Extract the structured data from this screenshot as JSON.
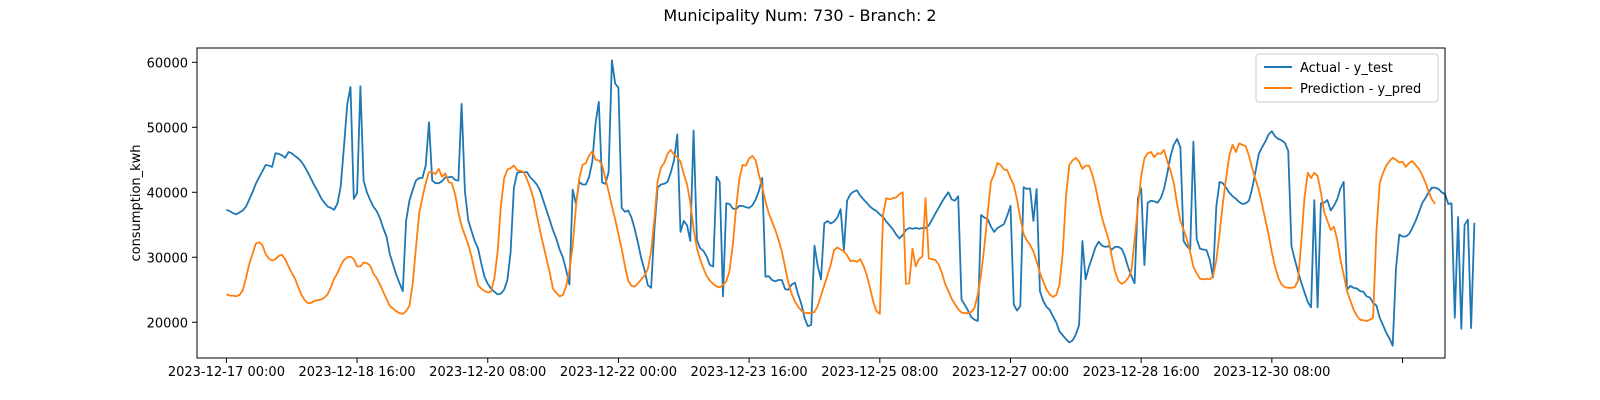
{
  "chart_data": {
    "type": "line",
    "title": "Municipality Num: 730 - Branch: 2",
    "xlabel": "",
    "ylabel": "consumption_kwh",
    "x_start": "2023-12-17 00:00",
    "x_step_hours": 1,
    "x_ticks": [
      "2023-12-17 00:00",
      "2023-12-18 16:00",
      "2023-12-20 08:00",
      "2023-12-22 00:00",
      "2023-12-23 16:00",
      "2023-12-25 08:00",
      "2023-12-27 00:00",
      "2023-12-28 16:00",
      "2023-12-30 08:00",
      ""
    ],
    "y_ticks": [
      "20000",
      "30000",
      "40000",
      "50000",
      "60000"
    ],
    "xlim": [
      "2023-12-16 15:00",
      "2024-01-01 13:00"
    ],
    "ylim": [
      14500,
      62200
    ],
    "grid": false,
    "legend_position": "top-right",
    "series": [
      {
        "name": "Actual - y_test",
        "color": "#1f77b4",
        "values": [
          37300,
          37100,
          36800,
          36600,
          36900,
          37200,
          37800,
          38900,
          40000,
          41300,
          42300,
          43200,
          44200,
          44100,
          43900,
          46000,
          45900,
          45700,
          45300,
          46200,
          46000,
          45600,
          45200,
          44700,
          43900,
          43000,
          42000,
          41000,
          40100,
          39100,
          38400,
          37800,
          37600,
          37300,
          38300,
          40900,
          47100,
          53600,
          56200,
          39000,
          39900,
          56300,
          41800,
          40000,
          38800,
          37800,
          37100,
          36000,
          34500,
          33200,
          30500,
          28900,
          27300,
          26000,
          24800,
          35600,
          38700,
          40300,
          41800,
          42200,
          42200,
          44100,
          50800,
          41800,
          41400,
          41400,
          41700,
          42300,
          42300,
          42400,
          41900,
          41800,
          53600,
          40200,
          35700,
          34100,
          32500,
          31400,
          29100,
          27000,
          25900,
          25200,
          24700,
          24300,
          24400,
          25000,
          26500,
          30800,
          40700,
          43000,
          43100,
          43100,
          43100,
          42300,
          41800,
          41200,
          40300,
          38700,
          37200,
          35700,
          34100,
          32800,
          31200,
          30000,
          28000,
          25800,
          40400,
          38200,
          41600,
          41200,
          41200,
          42300,
          44700,
          50700,
          53900,
          41500,
          41300,
          43100,
          60300,
          56700,
          56100,
          37600,
          37000,
          37200,
          36100,
          34300,
          32200,
          29800,
          28000,
          25700,
          25300,
          34300,
          40700,
          41200,
          41300,
          41600,
          43000,
          44900,
          48900,
          33900,
          35600,
          34900,
          32500,
          49500,
          32700,
          31400,
          31000,
          30100,
          28800,
          28600,
          42400,
          41600,
          24000,
          38300,
          38200,
          37500,
          37400,
          37900,
          37900,
          37700,
          37600,
          38000,
          38900,
          40200,
          42200,
          27000,
          27100,
          26500,
          26300,
          26500,
          26500,
          25100,
          25000,
          25800,
          26100,
          24300,
          22800,
          20600,
          19400,
          19600,
          31800,
          28700,
          26600,
          35200,
          35600,
          35200,
          35500,
          36100,
          37400,
          31100,
          38700,
          39700,
          40100,
          40300,
          39500,
          38900,
          38400,
          37800,
          37400,
          37100,
          36600,
          36200,
          35500,
          34900,
          34300,
          33500,
          32900,
          33400,
          34200,
          34500,
          34400,
          34500,
          34400,
          34500,
          34500,
          34900,
          35800,
          36700,
          37600,
          38500,
          39300,
          40000,
          38900,
          38700,
          39400,
          23500,
          22700,
          21800,
          20800,
          20400,
          20200,
          36500,
          36100,
          35900,
          34700,
          33900,
          34500,
          34800,
          35100,
          36400,
          37900,
          22700,
          21800,
          22500,
          40800,
          40500,
          40600,
          35600,
          40500,
          24800,
          23300,
          22400,
          21900,
          20900,
          20000,
          18600,
          18000,
          17400,
          16900,
          17200,
          18100,
          19600,
          32500,
          26600,
          28500,
          30000,
          31500,
          32400,
          31800,
          31600,
          31700,
          31200,
          31600,
          31600,
          31300,
          30200,
          28500,
          27100,
          26000,
          39100,
          40600,
          28800,
          38400,
          38700,
          38600,
          38400,
          39100,
          40500,
          42900,
          45600,
          47300,
          48200,
          46900,
          32500,
          31700,
          31200,
          47800,
          32800,
          31300,
          31200,
          31100,
          29600,
          26900,
          37800,
          41600,
          41400,
          40700,
          39900,
          39400,
          39000,
          38500,
          38200,
          38300,
          38700,
          40600,
          43200,
          45900,
          46900,
          47800,
          48900,
          49400,
          48600,
          48200,
          48000,
          47600,
          46400,
          31700,
          29700,
          27800,
          26100,
          24600,
          23100,
          22300,
          38800,
          22300,
          38300,
          38400,
          38800,
          37200,
          37900,
          38900,
          40600,
          41600,
          25000,
          25600,
          25300,
          25200,
          24800,
          24700,
          24000,
          23800,
          23000,
          22600,
          20700,
          19600,
          18400,
          17500,
          16400,
          28300,
          33500,
          33200,
          33200,
          33600,
          34500,
          35600,
          36900,
          38300,
          39100,
          40000,
          40700,
          40700,
          40500,
          40000,
          39700,
          38200,
          38300,
          20700,
          36200,
          19000,
          35000,
          35800,
          19100,
          35300
        ]
      },
      {
        "name": "Prediction - y_pred",
        "color": "#ff7f0e",
        "values": [
          24300,
          24100,
          24100,
          24000,
          24200,
          24900,
          26800,
          29000,
          30500,
          32100,
          32300,
          31900,
          30500,
          29800,
          29500,
          29700,
          30200,
          30400,
          29700,
          28600,
          27600,
          26700,
          25400,
          24200,
          23400,
          22900,
          23000,
          23300,
          23400,
          23500,
          23800,
          24300,
          25400,
          26700,
          27600,
          28700,
          29600,
          30000,
          30100,
          29700,
          28600,
          28600,
          29200,
          29100,
          28700,
          27500,
          26800,
          25800,
          24700,
          23600,
          22500,
          22100,
          21700,
          21400,
          21300,
          21700,
          22500,
          25800,
          31400,
          36800,
          39200,
          41400,
          43100,
          43100,
          42800,
          43600,
          42400,
          42900,
          41600,
          41400,
          39700,
          36900,
          34800,
          33400,
          32000,
          30200,
          27900,
          25700,
          25200,
          24800,
          24600,
          24700,
          26700,
          30800,
          37800,
          42100,
          43500,
          43700,
          44100,
          43400,
          43300,
          43100,
          42000,
          40700,
          39000,
          36500,
          34100,
          31900,
          29700,
          27600,
          25100,
          24500,
          24000,
          24200,
          25600,
          28000,
          31700,
          37900,
          42100,
          44200,
          44500,
          45600,
          46300,
          45000,
          44900,
          44200,
          42100,
          40100,
          37900,
          35800,
          33600,
          31300,
          28600,
          26400,
          25600,
          25500,
          26000,
          26600,
          27200,
          28200,
          30900,
          35900,
          41700,
          43800,
          44500,
          45900,
          46500,
          45800,
          45400,
          44700,
          42800,
          41200,
          38400,
          34400,
          31400,
          29700,
          28300,
          27100,
          26400,
          25900,
          25500,
          25400,
          25700,
          26300,
          27900,
          31900,
          37600,
          42000,
          44200,
          44100,
          45200,
          45600,
          44900,
          42700,
          40800,
          38600,
          36800,
          35500,
          34200,
          32700,
          30900,
          28500,
          26100,
          24400,
          23200,
          22400,
          21800,
          21500,
          21400,
          21400,
          21600,
          22500,
          24100,
          25700,
          27200,
          28900,
          31100,
          31500,
          31200,
          30900,
          30300,
          29400,
          29500,
          29300,
          29700,
          28700,
          27300,
          25300,
          23100,
          21700,
          21300,
          36600,
          39100,
          38900,
          39100,
          39200,
          39700,
          40000,
          25900,
          26000,
          31300,
          28600,
          29700,
          30100,
          39100,
          29800,
          29700,
          29600,
          28900,
          27600,
          25900,
          24800,
          23600,
          22800,
          22000,
          21500,
          21400,
          21400,
          21600,
          22200,
          24300,
          27400,
          31700,
          36700,
          41600,
          42800,
          44500,
          44200,
          43500,
          43400,
          42200,
          41100,
          38900,
          36000,
          33600,
          32600,
          31900,
          30900,
          29400,
          27600,
          26300,
          25100,
          24300,
          23900,
          24200,
          25800,
          30800,
          39400,
          44200,
          44900,
          45300,
          44700,
          43600,
          44100,
          44100,
          42800,
          40900,
          38400,
          36100,
          34400,
          32800,
          30100,
          27800,
          26400,
          25900,
          26200,
          26800,
          28000,
          32700,
          37800,
          42500,
          45200,
          46000,
          46200,
          45400,
          46000,
          45900,
          46500,
          44800,
          43300,
          41400,
          38200,
          35600,
          34200,
          32800,
          30800,
          28500,
          27500,
          26700,
          26600,
          26700,
          26600,
          27100,
          29500,
          33700,
          38200,
          42200,
          45700,
          47300,
          46200,
          47500,
          47300,
          47100,
          45600,
          43700,
          42000,
          40400,
          38200,
          35800,
          33500,
          30800,
          28500,
          26800,
          25800,
          25400,
          25300,
          25300,
          25400,
          26400,
          32400,
          39200,
          43000,
          42200,
          43000,
          42500,
          40000,
          37000,
          35600,
          34200,
          34700,
          32700,
          29600,
          27300,
          24800,
          23400,
          22000,
          21000,
          20400,
          20300,
          20200,
          20400,
          20700,
          33900,
          41400,
          42900,
          44100,
          44800,
          45300,
          45000,
          44600,
          44700,
          43900,
          44500,
          44800,
          44200,
          43600,
          42700,
          41500,
          40100,
          38900,
          38200
        ]
      }
    ]
  }
}
